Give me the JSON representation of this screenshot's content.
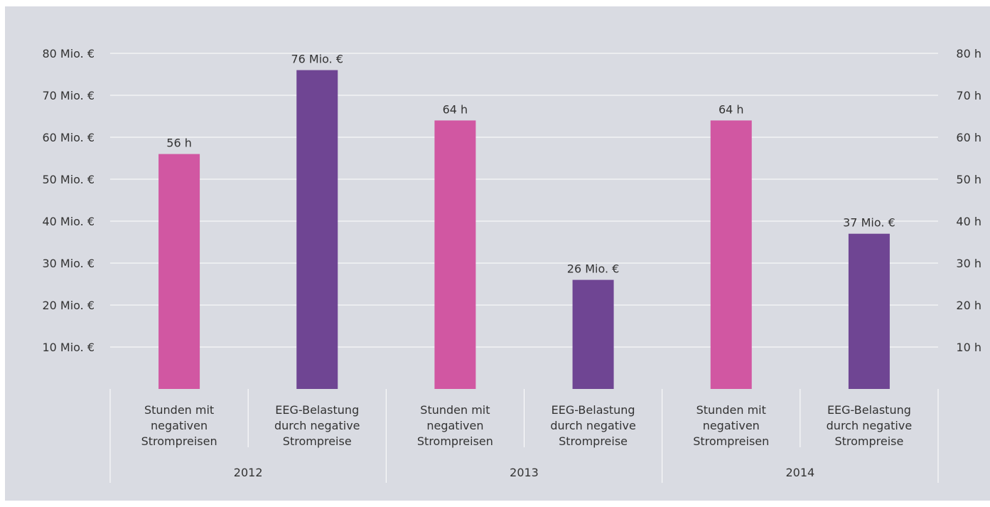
{
  "chart_data": {
    "type": "bar",
    "left_axis": {
      "ticks": [
        "10 Mio. €",
        "20 Mio. €",
        "30 Mio. €",
        "40 Mio. €",
        "50 Mio. €",
        "60 Mio. €",
        "70 Mio. €",
        "80 Mio. €"
      ],
      "range": [
        0,
        80
      ]
    },
    "right_axis": {
      "ticks": [
        "10 h",
        "20 h",
        "30 h",
        "40 h",
        "50 h",
        "60 h",
        "70 h",
        "80 h"
      ],
      "range": [
        0,
        80
      ]
    },
    "grid": true,
    "groups": [
      "2012",
      "2013",
      "2014"
    ],
    "bars": [
      {
        "group": "2012",
        "category": [
          "Stunden mit",
          "negativen",
          "Strompreisen"
        ],
        "value": 56,
        "label": "56 h",
        "color": "#d157a2"
      },
      {
        "group": "2012",
        "category": [
          "EEG-Belastung",
          "durch negative",
          "Strompreise"
        ],
        "value": 76,
        "label": "76  Mio. €",
        "color": "#6f4593"
      },
      {
        "group": "2013",
        "category": [
          "Stunden mit",
          "negativen",
          "Strompreisen"
        ],
        "value": 64,
        "label": "64 h",
        "color": "#d157a2"
      },
      {
        "group": "2013",
        "category": [
          "EEG-Belastung",
          "durch negative",
          "Strompreise"
        ],
        "value": 26,
        "label": "26  Mio. €",
        "color": "#6f4593"
      },
      {
        "group": "2014",
        "category": [
          "Stunden mit",
          "negativen",
          "Strompreisen"
        ],
        "value": 64,
        "label": "64 h",
        "color": "#d157a2"
      },
      {
        "group": "2014",
        "category": [
          "EEG-Belastung",
          "durch negative",
          "Strompreise"
        ],
        "value": 37,
        "label": "37  Mio. €",
        "color": "#6f4593"
      }
    ]
  }
}
